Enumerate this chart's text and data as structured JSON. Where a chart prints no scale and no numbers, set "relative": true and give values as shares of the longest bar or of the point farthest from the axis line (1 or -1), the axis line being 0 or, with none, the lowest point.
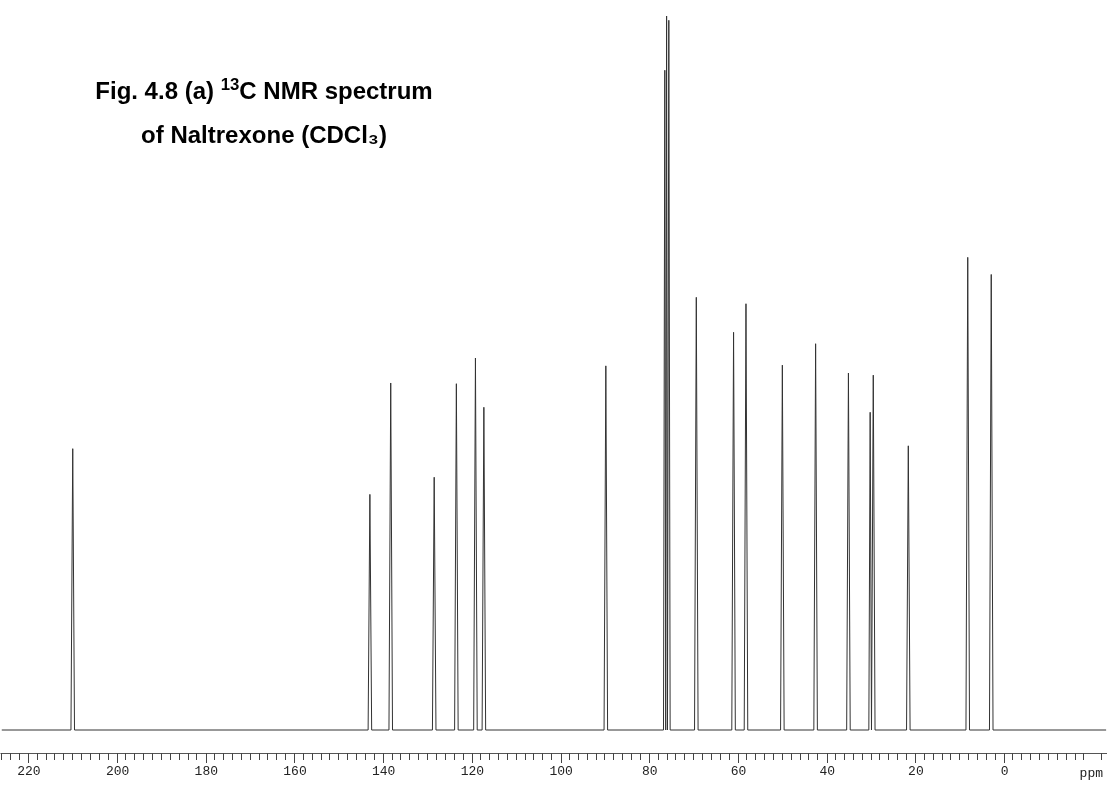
{
  "chart_data": {
    "type": "line",
    "relative": true,
    "title": "Fig. 4.8 (a) $^{13}$C NMR spectrum\nof Naltrexone (CDCl₃)",
    "xlabel": "ppm",
    "x": [
      226,
      210.4,
      210.0,
      209.6,
      143.4,
      143.0,
      142.6,
      138.7,
      138.3,
      137.9,
      128.9,
      128.5,
      128.1,
      123.9,
      123.5,
      123.1,
      119.6,
      119.2,
      118.8,
      117.7,
      117.3,
      116.9,
      90.2,
      89.8,
      89.4,
      76.8,
      76.5,
      76.3,
      76.1,
      75.9,
      75.6,
      75.3,
      69.8,
      69.4,
      69.0,
      61.4,
      61.0,
      60.6,
      58.6,
      58.2,
      57.8,
      50.4,
      50.0,
      49.6,
      42.9,
      42.5,
      42.1,
      35.5,
      35.1,
      34.7,
      30.5,
      30.2,
      29.9,
      29.5,
      29.1,
      22.0,
      21.6,
      21.2,
      8.6,
      8.2,
      7.8,
      3.3,
      2.9,
      2.5,
      -23
    ],
    "series": [
      {
        "color": "#333333",
        "values": [
          0,
          0,
          0.394,
          0,
          0,
          0.33,
          0,
          0,
          0.486,
          0,
          0,
          0.354,
          0,
          0,
          0.485,
          0,
          0,
          0.521,
          0,
          0,
          0.452,
          0,
          0,
          0.51,
          0,
          0,
          0.924,
          0,
          1,
          0,
          0.994,
          0,
          0,
          0.606,
          0,
          0,
          0.557,
          0,
          0,
          0.597,
          0,
          0,
          0.511,
          0,
          0,
          0.541,
          0,
          0,
          0.5,
          0,
          0,
          0.445,
          0,
          0.497,
          0,
          0,
          0.398,
          0,
          0,
          0.662,
          0,
          0,
          0.638,
          0,
          0
        ]
      }
    ],
    "xlim": [
      226.4,
      -23.2
    ],
    "xticks": [
      220,
      200,
      180,
      160,
      140,
      120,
      100,
      80,
      60,
      40,
      20,
      0
    ],
    "tick_labels": "x",
    "grid": false,
    "marker": "none",
    "line_style": "solid"
  }
}
